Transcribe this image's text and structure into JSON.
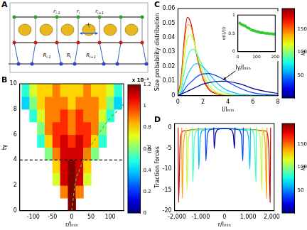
{
  "diagram": {
    "panel": "A",
    "labels": [
      {
        "text": "r",
        "sub": "i-1"
      },
      {
        "text": "r",
        "sub": "i"
      },
      {
        "text": "r",
        "sub": "i+1"
      },
      {
        "text": "l",
        "sub": "i"
      },
      {
        "text": "R",
        "sub": "i-1"
      },
      {
        "text": "R",
        "sub": "i"
      },
      {
        "text": "R",
        "sub": "i+1"
      }
    ]
  },
  "chart_data": [
    {
      "panel": "B",
      "type": "heatmap",
      "x_label": "r/lₘᵢₙ",
      "y_label": "tγ",
      "xlim": [
        -135,
        135
      ],
      "xticks": [
        -100,
        -50,
        0,
        50,
        100
      ],
      "ylim": [
        0,
        10
      ],
      "yticks": [
        0,
        2,
        4,
        6,
        8,
        10
      ],
      "grid": false,
      "x": [
        -120,
        -100,
        -80,
        -60,
        -40,
        -20,
        0,
        20,
        40,
        60,
        80,
        100,
        120
      ],
      "y": [
        0.5,
        1.5,
        2.5,
        3.5,
        4.5,
        5.5,
        6.5,
        7.5,
        8.5,
        9.5
      ],
      "cells": [
        [
          null,
          null,
          null,
          null,
          null,
          null,
          0.0012,
          null,
          null,
          null,
          null,
          null,
          null
        ],
        [
          null,
          null,
          null,
          null,
          null,
          0.0009,
          0.0012,
          0.0009,
          null,
          null,
          null,
          null,
          null
        ],
        [
          null,
          null,
          null,
          null,
          0.0007,
          0.0011,
          0.0012,
          0.0011,
          0.0007,
          null,
          null,
          null,
          null
        ],
        [
          null,
          null,
          null,
          null,
          0.0008,
          0.0011,
          0.0012,
          0.0011,
          0.0008,
          null,
          null,
          null,
          null
        ],
        [
          null,
          null,
          null,
          0.0006,
          0.0009,
          0.0011,
          0.0011,
          0.0011,
          0.0009,
          0.0006,
          null,
          null,
          null
        ],
        [
          null,
          null,
          0.0005,
          0.0008,
          0.001,
          0.0011,
          0.001,
          0.0011,
          0.001,
          0.0008,
          0.0005,
          null,
          null
        ],
        [
          null,
          null,
          0.0006,
          0.0009,
          0.001,
          0.001,
          0.0009,
          0.001,
          0.001,
          0.0009,
          0.0006,
          null,
          null
        ],
        [
          null,
          0.0005,
          0.0007,
          0.0009,
          0.0009,
          0.001,
          0.0009,
          0.001,
          0.0009,
          0.0009,
          0.0007,
          0.0005,
          null
        ],
        [
          0.0004,
          0.0006,
          0.0008,
          0.0009,
          0.0009,
          0.0009,
          0.0008,
          0.0009,
          0.0009,
          0.0009,
          0.0008,
          0.0006,
          0.0004
        ],
        [
          0.0005,
          0.0007,
          0.0008,
          0.0008,
          0.0009,
          0.0008,
          0.0008,
          0.0008,
          0.0009,
          0.0008,
          0.0008,
          0.0007,
          0.0005
        ]
      ],
      "series": [
        {
          "color": "#000000",
          "line_style": "dashed",
          "x": [
            -135,
            135
          ],
          "values": [
            4,
            4
          ]
        },
        {
          "color": "#33cc33",
          "line_style": "dashed",
          "x": [
            0,
            10,
            20,
            30,
            40,
            60,
            80,
            100,
            120,
            135
          ],
          "values": [
            0,
            2.3,
            3.2,
            4.0,
            4.6,
            5.6,
            6.5,
            7.3,
            7.9,
            8.4
          ]
        }
      ],
      "colorbar": {
        "title": "x 10⁻³",
        "label": "p(l)",
        "lim": [
          0,
          0.0012
        ],
        "ticks": [
          0,
          {
            "value": 0.0002,
            "label": "0.2"
          },
          {
            "value": 0.0004,
            "label": "0.4"
          },
          {
            "value": 0.0006,
            "label": "0.6"
          },
          {
            "value": 0.0008,
            "label": "0.8"
          },
          {
            "value": 0.001,
            "label": "1"
          },
          {
            "value": 0.0012,
            "label": "1.2"
          }
        ]
      }
    },
    {
      "panel": "C",
      "type": "line",
      "x_label": "l/lₘᵢₙ",
      "y_label": "Size probability distribution",
      "xlim": [
        0,
        8
      ],
      "xticks": [
        0,
        2,
        4,
        6,
        8
      ],
      "ylim": [
        0,
        0.06
      ],
      "yticks": [
        0,
        0.01,
        0.02,
        0.03,
        0.04,
        0.05,
        0.06
      ],
      "grid": false,
      "x": [
        0,
        0.25,
        0.5,
        0.75,
        1,
        1.25,
        1.5,
        2,
        2.5,
        3,
        3.5,
        4,
        5,
        6,
        7,
        8
      ],
      "series": [
        {
          "color": "#00008f",
          "values": [
            0,
            0.001,
            0.002,
            0.003,
            0.004,
            0.005,
            0.006,
            0.008,
            0.009,
            0.0098,
            0.01,
            0.0098,
            0.008,
            0.005,
            0.003,
            0.0015
          ]
        },
        {
          "color": "#0040ff",
          "values": [
            0,
            0.001,
            0.004,
            0.007,
            0.009,
            0.011,
            0.013,
            0.015,
            0.0152,
            0.014,
            0.012,
            0.0095,
            0.005,
            0.002,
            0.0008,
            0.0003
          ]
        },
        {
          "color": "#00bfff",
          "values": [
            0,
            0.002,
            0.008,
            0.014,
            0.018,
            0.021,
            0.022,
            0.02,
            0.015,
            0.01,
            0.006,
            0.0035,
            0.001,
            0.0003,
            0.0001,
            0
          ]
        },
        {
          "color": "#40ffbf",
          "values": [
            0,
            0.004,
            0.016,
            0.026,
            0.031,
            0.032,
            0.029,
            0.02,
            0.011,
            0.006,
            0.003,
            0.0015,
            0.0004,
            0.0001,
            0,
            0
          ]
        },
        {
          "color": "#bfff40",
          "values": [
            0,
            0.007,
            0.026,
            0.039,
            0.042,
            0.038,
            0.03,
            0.016,
            0.007,
            0.003,
            0.0012,
            0.0005,
            0.0001,
            0,
            0,
            0
          ]
        },
        {
          "color": "#ff9f00",
          "values": [
            0,
            0.01,
            0.034,
            0.049,
            0.048,
            0.04,
            0.029,
            0.013,
            0.005,
            0.002,
            0.0008,
            0.0003,
            0,
            0,
            0,
            0
          ]
        },
        {
          "color": "#bf0000",
          "values": [
            0,
            0.012,
            0.038,
            0.054,
            0.051,
            0.041,
            0.028,
            0.012,
            0.004,
            0.0015,
            0.0005,
            0.0002,
            0,
            0,
            0,
            0
          ]
        }
      ],
      "annotations": [
        {
          "text": "lγ/lₘᵢₙ",
          "x": 4.6,
          "y": 0.017,
          "arrow_x": 3.6,
          "arrow_y": 0.0108
        }
      ],
      "colorbar": {
        "label": "tγ",
        "lim": [
          0,
          195
        ],
        "ticks": [
          50,
          100,
          150
        ]
      },
      "inset": {
        "type": "scatter",
        "y_label": "σ(l)/⟨l⟩",
        "xlim": [
          0,
          200
        ],
        "xticks": [
          0,
          100,
          200
        ],
        "ylim": [
          0,
          1
        ],
        "yticks": [
          0,
          0.5,
          1
        ],
        "grid": false,
        "x": [
          10,
          20,
          30,
          40,
          50,
          60,
          70,
          80,
          90,
          100,
          110,
          120,
          130,
          140,
          150,
          160,
          170,
          180,
          190,
          200
        ],
        "series": [
          {
            "color": "#33cc33",
            "marker": "circle",
            "values": [
              0.78,
              0.74,
              0.72,
              0.7,
              0.66,
              0.64,
              0.6,
              0.58,
              0.57,
              0.55,
              0.54,
              0.52,
              0.52,
              0.51,
              0.5,
              0.5,
              0.49,
              0.49,
              0.48,
              0.48
            ]
          }
        ]
      }
    },
    {
      "panel": "D",
      "type": "line",
      "x_label": "r/lₘᵢₙ",
      "y_label": "Traction forces",
      "xlim": [
        -2100,
        2100
      ],
      "xticks": [
        {
          "value": -2000,
          "label": "-2,000"
        },
        {
          "value": -1000,
          "label": "-1,000"
        },
        0,
        {
          "value": 1000,
          "label": "1,000"
        },
        {
          "value": 2000,
          "label": "2,000"
        }
      ],
      "ylim": [
        -20,
        1
      ],
      "yticks": [
        -20,
        -15,
        -10,
        -5,
        0
      ],
      "grid": false,
      "series": [
        {
          "color": "#00008f",
          "x": [
            -450,
            -430,
            -370,
            -250,
            0,
            250,
            370,
            430,
            450
          ],
          "values": [
            0,
            -5,
            -1.5,
            -0.4,
            -0.2,
            -0.4,
            -1.5,
            -5,
            0
          ]
        },
        {
          "color": "#0040ff",
          "x": [
            -800,
            -780,
            -720,
            -600,
            0,
            600,
            720,
            780,
            800
          ],
          "values": [
            0,
            -8,
            -2,
            -0.5,
            -0.2,
            -0.5,
            -2,
            -8,
            0
          ]
        },
        {
          "color": "#00bfff",
          "x": [
            -1100,
            -1080,
            -1020,
            -900,
            0,
            900,
            1020,
            1080,
            1100
          ],
          "values": [
            0,
            -10,
            -2.5,
            -0.6,
            -0.2,
            -0.6,
            -2.5,
            -10,
            0
          ]
        },
        {
          "color": "#40ffbf",
          "x": [
            -1350,
            -1330,
            -1270,
            -1150,
            0,
            1150,
            1270,
            1330,
            1350
          ],
          "values": [
            0,
            -13,
            -3,
            -0.6,
            -0.2,
            -0.6,
            -3,
            -13,
            0
          ]
        },
        {
          "color": "#bfff40",
          "x": [
            -1600,
            -1580,
            -1520,
            -1400,
            0,
            1400,
            1520,
            1580,
            1600
          ],
          "values": [
            0,
            -15,
            -3.5,
            -0.7,
            -0.2,
            -0.7,
            -3.5,
            -15,
            0
          ]
        },
        {
          "color": "#ff9f00",
          "x": [
            -1800,
            -1780,
            -1720,
            -1600,
            0,
            1600,
            1720,
            1780,
            1800
          ],
          "values": [
            0,
            -17,
            -4,
            -0.8,
            -0.2,
            -0.8,
            -4,
            -17,
            0
          ]
        },
        {
          "color": "#bf0000",
          "x": [
            -1950,
            -1930,
            -1870,
            -1750,
            0,
            1750,
            1870,
            1930,
            1950
          ],
          "values": [
            0,
            -18,
            -4.5,
            -0.8,
            -0.2,
            -0.8,
            -4.5,
            -18,
            0
          ]
        }
      ],
      "colorbar": {
        "label": "tγ",
        "lim": [
          0,
          195
        ],
        "ticks": [
          50,
          100,
          150
        ]
      }
    }
  ]
}
